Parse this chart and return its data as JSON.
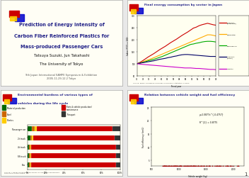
{
  "slide_bg": "#e8e8e8",
  "panel_bg": "#fffef5",
  "panel_border": "#aaaaaa",
  "title_text": [
    "Prediction of Energy Intensity of",
    "Carbon Fiber Reinforced Plastics for",
    "Mass-produced Passenger Cars"
  ],
  "author_text": "Tatsuya Suzuki, Jun Takahashi",
  "affil_text": "The University of Tokyo",
  "conf_text": "9th Japan International SAMPE Symposium & Exhibition\n2005.11.29-12.2 Tokyo",
  "logo_colors": [
    "#cc0000",
    "#0000cc",
    "#ffcc00"
  ],
  "panel2_title": "Final energy consumption by sector in Japan",
  "panel2_ylabel": "Index (FY71 = 100)",
  "panel2_xlabel": "Fiscal year",
  "panel2_source": "Source: EDMC, Handbook of Energy & Economic Statistics in Japan",
  "panel2_lines": {
    "Transport\n(Passenger)": {
      "color": "#cc0000",
      "y": [
        100,
        105,
        112,
        120,
        128,
        135,
        142,
        150,
        158,
        165,
        172,
        180,
        188,
        195,
        202,
        210,
        218,
        225,
        232,
        240,
        248,
        252,
        258,
        262,
        265,
        268,
        265,
        262,
        260
      ]
    },
    "Residential": {
      "color": "#ffaa00",
      "y": [
        100,
        103,
        107,
        112,
        116,
        120,
        125,
        130,
        135,
        140,
        145,
        150,
        155,
        160,
        165,
        170,
        175,
        180,
        185,
        190,
        195,
        200,
        205,
        210,
        215,
        220,
        220,
        218,
        215
      ]
    },
    "Commercial": {
      "color": "#00aa00",
      "y": [
        100,
        102,
        105,
        108,
        112,
        115,
        118,
        122,
        126,
        130,
        135,
        140,
        145,
        150,
        155,
        160,
        165,
        170,
        175,
        180,
        182,
        185,
        187,
        190,
        192,
        193,
        193,
        192,
        190
      ]
    },
    "Transport\n(Cargo)": {
      "color": "#000066",
      "y": [
        100,
        102,
        104,
        106,
        108,
        110,
        112,
        115,
        118,
        120,
        122,
        125,
        127,
        130,
        132,
        135,
        137,
        138,
        138,
        137,
        136,
        135,
        134,
        133,
        132,
        131,
        130,
        130,
        130
      ]
    },
    "Industry": {
      "color": "#cc00cc",
      "y": [
        100,
        98,
        97,
        96,
        95,
        94,
        93,
        92,
        91,
        90,
        89,
        88,
        87,
        86,
        85,
        84,
        83,
        82,
        82,
        82,
        81,
        80,
        80,
        79,
        78,
        77,
        76,
        76,
        75
      ]
    }
  },
  "panel2_xlabels": [
    "71",
    "73",
    "75",
    "78",
    "80",
    "83",
    "85",
    "88",
    "90",
    "93",
    "95",
    "98",
    "00",
    "03"
  ],
  "panel2_ylim": [
    50,
    300
  ],
  "panel3_title": [
    "Environmental burdens of various types of",
    "vehicles during the life cycle"
  ],
  "panel3_categories": [
    "Bus",
    "SS truck",
    "4t truck",
    "2t truck",
    "Passenger car"
  ],
  "panel3_bars": {
    "Material production": {
      "color": "#006600",
      "values": [
        2,
        2,
        2,
        3,
        5
      ]
    },
    "Steel": {
      "color": "#cc6600",
      "values": [
        1,
        1,
        1,
        2,
        3
      ]
    },
    "Plastics": {
      "color": "#ffcc00",
      "values": [
        1,
        1,
        1,
        1,
        2
      ]
    },
    "Parts & vehicle production/\nmaintenance": {
      "color": "#cc0000",
      "values": [
        92,
        92,
        92,
        88,
        82
      ]
    },
    "Transport": {
      "color": "#333333",
      "values": [
        4,
        4,
        4,
        6,
        8
      ]
    }
  },
  "panel3_source": "Source: J. Nakai, Environmental burden of Life Cycle assessment,\n2003 Vol.8, p.685-19862",
  "panel4_title": "Relation between vehicle weight and fuel efficiency",
  "panel4_xlabel": "Vehicle weight (kg)",
  "panel4_ylabel": "Fuel efficiency (km/L)",
  "panel4_equation": "y=2.0877x^{-0.4757}",
  "panel4_r2": "R^{2} = 0.8775",
  "panel4_xlim": [
    500,
    2200
  ],
  "panel4_ylim": [
    3,
    25
  ],
  "panel4_dot_color": "#cc0000"
}
